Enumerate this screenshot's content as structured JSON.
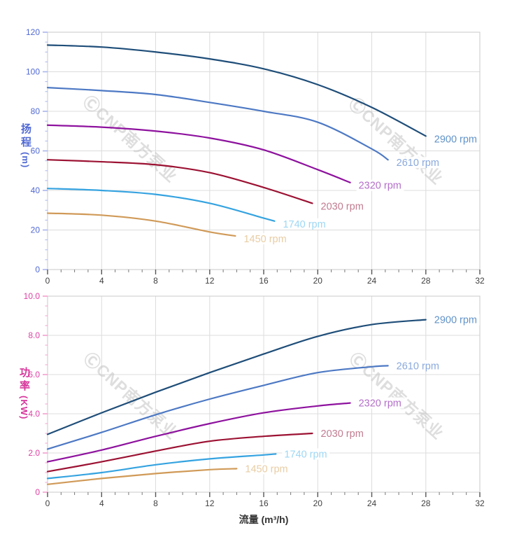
{
  "watermark": {
    "text": "ⒸCNP南方泵业",
    "color": "#c3c3c3"
  },
  "flow_axis": {
    "label": "流量 (m³/h)",
    "min": 0,
    "max": 32,
    "major_step": 4,
    "minor_step": 1,
    "tick_labels": [
      "0",
      "4",
      "8",
      "12",
      "16",
      "20",
      "24",
      "28",
      "32"
    ]
  },
  "chart_data": [
    {
      "type": "line",
      "title": "",
      "ylabel": "扬程",
      "y_unit": "(m)",
      "xlabel": "流量 (m³/h)",
      "xlim": [
        0,
        32
      ],
      "ylim": [
        0,
        120
      ],
      "y_major_step": 20,
      "y_minor_step": 5,
      "y_tick_labels": [
        "0",
        "20",
        "40",
        "60",
        "80",
        "100",
        "120"
      ],
      "grid": true,
      "legend_position": "inline-right-of-curve-end",
      "axis_color": "#5069d4",
      "tick_color": "#aab6ec",
      "series": [
        {
          "name": "2900 rpm",
          "color": "#1f4e79",
          "label_color": "#6193c8",
          "x": [
            0,
            4,
            8,
            12,
            16,
            20,
            24,
            28
          ],
          "y": [
            113.5,
            112.5,
            110,
            106.5,
            101.5,
            93.5,
            82,
            67.5
          ]
        },
        {
          "name": "2610 rpm",
          "color": "#4d79c4",
          "label_color": "#8aa9dc",
          "x": [
            0,
            4,
            8,
            12,
            16,
            20,
            24,
            25.2
          ],
          "y": [
            92,
            90.5,
            88.5,
            84.5,
            80,
            74.5,
            61,
            55.5
          ]
        },
        {
          "name": "2320 rpm",
          "color": "#8e129e",
          "label_color": "#b46fc9",
          "x": [
            0,
            4,
            8,
            12,
            16,
            20,
            22.4
          ],
          "y": [
            73,
            72,
            70,
            66.5,
            60.5,
            50.5,
            44
          ]
        },
        {
          "name": "2030 rpm",
          "color": "#9c1233",
          "label_color": "#c17c90",
          "x": [
            0,
            4,
            8,
            12,
            16,
            19.6
          ],
          "y": [
            55.5,
            54.5,
            53,
            49,
            41.5,
            33.5
          ]
        },
        {
          "name": "1740 rpm",
          "color": "#35a3e0",
          "label_color": "#9ed7f4",
          "x": [
            0,
            4,
            8,
            12,
            16,
            16.8
          ],
          "y": [
            41,
            40,
            38,
            33.5,
            26,
            24.5
          ]
        },
        {
          "name": "1450 rpm",
          "color": "#d09a58",
          "label_color": "#e8cda4",
          "x": [
            0,
            4,
            8,
            12,
            13.9
          ],
          "y": [
            28.5,
            27.5,
            24.5,
            19,
            17
          ]
        }
      ]
    },
    {
      "type": "line",
      "title": "",
      "ylabel": "功率",
      "y_unit": "(KW)",
      "xlabel": "流量 (m³/h)",
      "xlim": [
        0,
        32
      ],
      "ylim": [
        0,
        10
      ],
      "y_major_step": 2,
      "y_minor_step": 0.5,
      "y_tick_labels": [
        "0",
        "2.0",
        "4.0",
        "6.0",
        "8.0",
        "10.0"
      ],
      "grid": true,
      "legend_position": "inline-right-of-curve-end",
      "axis_color": "#e03fa5",
      "tick_color": "#f4a0ce",
      "series": [
        {
          "name": "2900 rpm",
          "color": "#1f4e79",
          "label_color": "#6193c8",
          "x": [
            0,
            4,
            8,
            12,
            16,
            20,
            24,
            28
          ],
          "y": [
            2.95,
            4.05,
            5.1,
            6.1,
            7.05,
            7.95,
            8.55,
            8.8
          ]
        },
        {
          "name": "2610 rpm",
          "color": "#4d79c4",
          "label_color": "#8aa9dc",
          "x": [
            0,
            4,
            8,
            12,
            16,
            20,
            24,
            25.2
          ],
          "y": [
            2.2,
            3.05,
            3.95,
            4.75,
            5.45,
            6.1,
            6.4,
            6.45
          ]
        },
        {
          "name": "2320 rpm",
          "color": "#8e129e",
          "label_color": "#b46fc9",
          "x": [
            0,
            4,
            8,
            12,
            16,
            20,
            22.4
          ],
          "y": [
            1.55,
            2.15,
            2.85,
            3.5,
            4.05,
            4.4,
            4.55
          ]
        },
        {
          "name": "2030 rpm",
          "color": "#9c1233",
          "label_color": "#c17c90",
          "x": [
            0,
            4,
            8,
            12,
            16,
            19.6
          ],
          "y": [
            1.05,
            1.55,
            2.1,
            2.6,
            2.85,
            3.0
          ]
        },
        {
          "name": "1740 rpm",
          "color": "#35a3e0",
          "label_color": "#9ed7f4",
          "x": [
            0,
            4,
            8,
            12,
            16,
            16.9
          ],
          "y": [
            0.7,
            1.0,
            1.4,
            1.7,
            1.9,
            1.95
          ]
        },
        {
          "name": "1450 rpm",
          "color": "#d09a58",
          "label_color": "#e8cda4",
          "x": [
            0,
            4,
            8,
            12,
            14
          ],
          "y": [
            0.4,
            0.7,
            0.95,
            1.15,
            1.2
          ]
        }
      ]
    }
  ]
}
